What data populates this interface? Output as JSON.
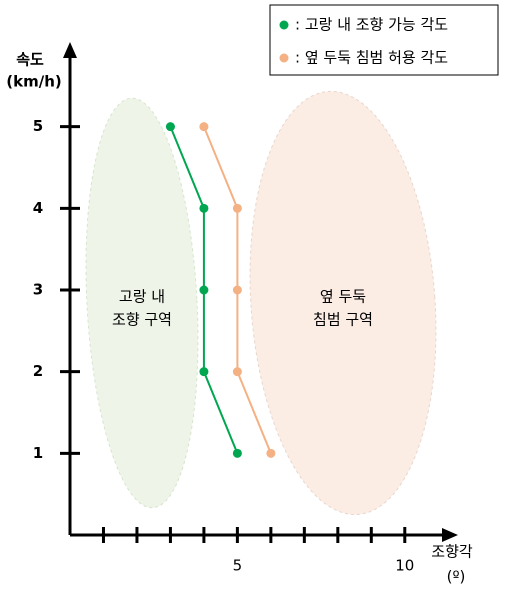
{
  "chart_data": {
    "type": "line",
    "ylabel": [
      "속도",
      "(km/h)"
    ],
    "xlabel": [
      "조향각",
      "(º)"
    ],
    "xlim": [
      0,
      11.5
    ],
    "xticks": [
      5,
      10
    ],
    "xminorticks": [
      1,
      2,
      3,
      4,
      6,
      7,
      8,
      9
    ],
    "ylim": [
      0,
      6
    ],
    "yticks": [
      1,
      2,
      3,
      4,
      5
    ],
    "legend": "top-right",
    "series": [
      {
        "name": ": 고랑 내 조향 가능 각도",
        "color": "#00a650",
        "x": [
          3,
          4,
          4,
          4,
          5
        ],
        "values": [
          5,
          4,
          3,
          2,
          1
        ]
      },
      {
        "name": ": 옆 두둑 침범 허용 각도",
        "color": "#f4b183",
        "x": [
          4,
          5,
          5,
          5,
          6
        ],
        "values": [
          5,
          4,
          3,
          2,
          1
        ]
      }
    ],
    "annotations": [
      [
        "고랑 내",
        "조향 구역"
      ],
      [
        "옆 두둑",
        "침범 구역"
      ]
    ]
  }
}
